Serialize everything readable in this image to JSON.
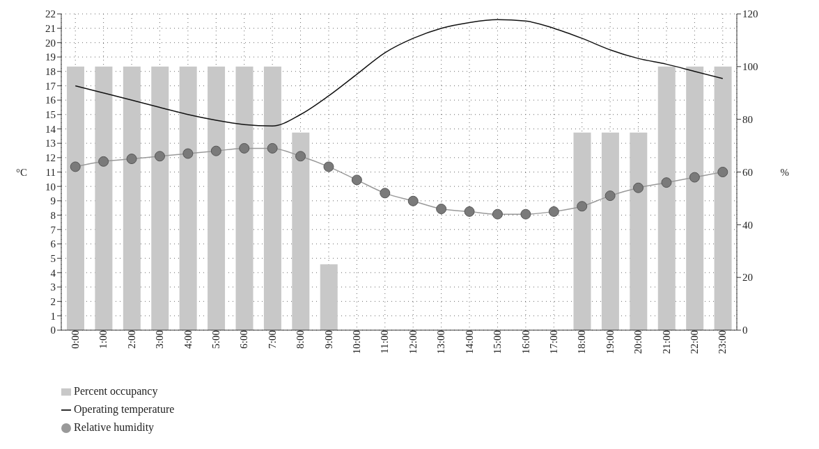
{
  "chart_data": {
    "type": "bar",
    "ylabel": "°C",
    "y2label": "%",
    "categories": [
      "0:00",
      "1:00",
      "2:00",
      "3:00",
      "4:00",
      "5:00",
      "6:00",
      "7:00",
      "8:00",
      "9:00",
      "10:00",
      "11:00",
      "12:00",
      "13:00",
      "14:00",
      "15:00",
      "16:00",
      "17:00",
      "18:00",
      "19:00",
      "20:00",
      "21:00",
      "22:00",
      "23:00"
    ],
    "series": [
      {
        "name": "Percent occupancy",
        "axis": "y2",
        "color": "#c8c8c8",
        "values": [
          100,
          100,
          100,
          100,
          100,
          100,
          100,
          100,
          75,
          25,
          0,
          0,
          0,
          0,
          0,
          0,
          0,
          0,
          75,
          75,
          75,
          100,
          100,
          100
        ]
      },
      {
        "name": "Operating temperature",
        "type": "line",
        "axis": "y",
        "color": "#111111",
        "marker": "none",
        "values": [
          17.0,
          16.5,
          16.0,
          15.5,
          15.0,
          14.6,
          14.3,
          14.2,
          15.0,
          16.3,
          17.8,
          19.3,
          20.3,
          21.0,
          21.4,
          21.6,
          21.5,
          21.0,
          20.3,
          19.5,
          18.9,
          18.5,
          18.0,
          17.5
        ]
      },
      {
        "name": "Relative humidity",
        "type": "line",
        "axis": "y2",
        "color": "#999999",
        "marker": "circle",
        "values": [
          62,
          64,
          65,
          66,
          67,
          68,
          69,
          69,
          66,
          62,
          57,
          52,
          49,
          46,
          45,
          44,
          44,
          45,
          47,
          51,
          54,
          56,
          58,
          60
        ]
      }
    ],
    "ylim": [
      0,
      22
    ],
    "yticks": [
      0,
      1,
      2,
      3,
      4,
      5,
      6,
      7,
      8,
      9,
      10,
      11,
      12,
      13,
      14,
      15,
      16,
      17,
      18,
      19,
      20,
      21,
      22
    ],
    "y2lim": [
      0,
      120
    ],
    "y2ticks": [
      0,
      20,
      40,
      60,
      80,
      100,
      120
    ],
    "grid": true,
    "legend": "bottom left"
  }
}
